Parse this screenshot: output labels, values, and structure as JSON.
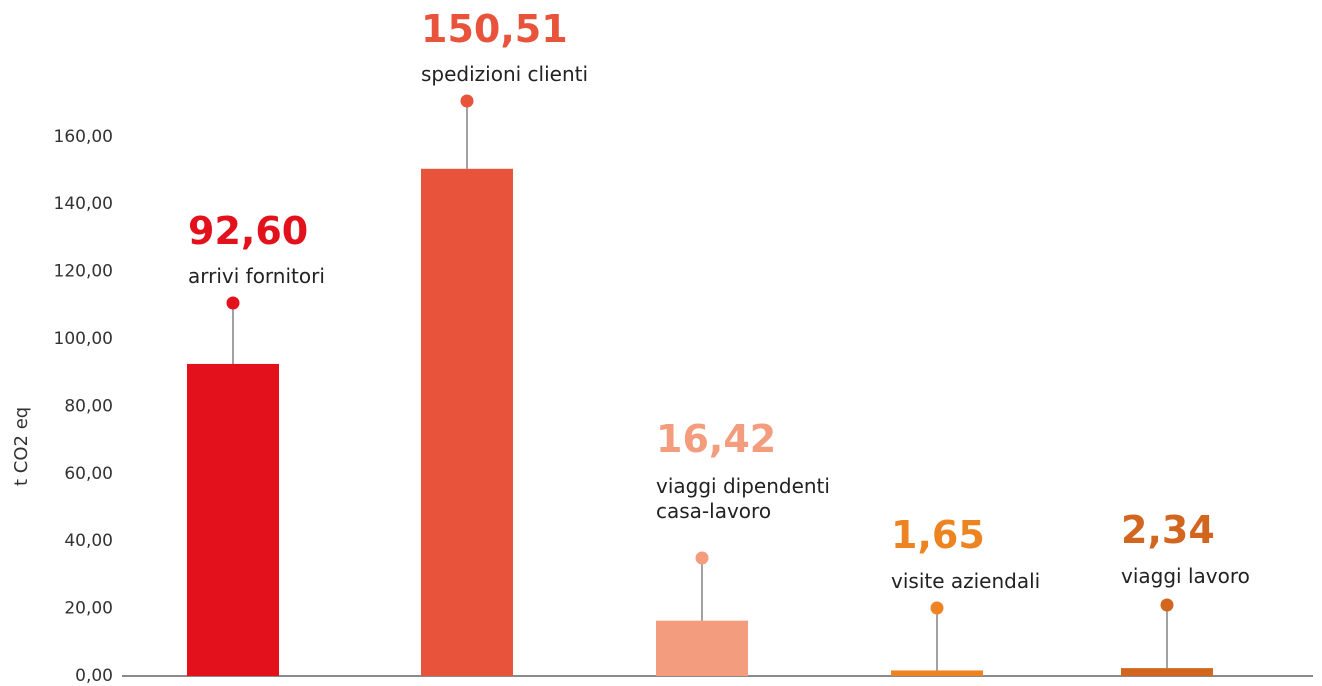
{
  "chart_data": {
    "type": "bar",
    "ylabel": "t  CO2 eq",
    "ylim": [
      0,
      160
    ],
    "yticks": [
      "0,00",
      "20,00",
      "40,00",
      "60,00",
      "80,00",
      "100,00",
      "120,00",
      "140,00",
      "160,00"
    ],
    "grid": false,
    "categories": [
      "arrivi fornitori",
      "spedizioni clienti",
      "viaggi dipendenti casa-lavoro",
      "visite aziendali",
      "viaggi lavoro"
    ],
    "category_label_lines": [
      [
        "arrivi fornitori"
      ],
      [
        "spedizioni clienti"
      ],
      [
        "viaggi dipendenti",
        "casa-lavoro"
      ],
      [
        "visite aziendali"
      ],
      [
        "viaggi lavoro"
      ]
    ],
    "values": [
      92.6,
      150.51,
      16.42,
      1.65,
      2.34
    ],
    "value_labels": [
      "92,60",
      "150,51",
      "16,42",
      "1,65",
      "2,34"
    ],
    "colors": [
      "#E2111B",
      "#E8543B",
      "#F39C7E",
      "#EE8321",
      "#D3661F"
    ]
  }
}
